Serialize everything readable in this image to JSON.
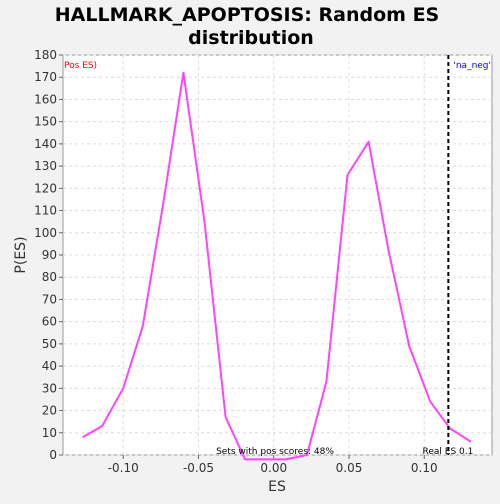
{
  "chart_data": {
    "type": "line",
    "title_lines": [
      "HALLMARK_APOPTOSIS: Random ES",
      "distribution"
    ],
    "xlabel": "ES",
    "ylabel": "P(ES)",
    "xlim": [
      -0.14,
      0.145
    ],
    "ylim": [
      0,
      180
    ],
    "x_ticks": [
      -0.1,
      -0.05,
      0.0,
      0.05,
      0.1
    ],
    "x_tick_labels": [
      "-0.10",
      "-0.05",
      "0.00",
      "0.05",
      "0.10"
    ],
    "y_ticks": [
      0,
      10,
      20,
      30,
      40,
      50,
      60,
      70,
      80,
      90,
      100,
      110,
      120,
      130,
      140,
      150,
      160,
      170,
      180
    ],
    "y_tick_labels": [
      "0",
      "10",
      "20",
      "30",
      "40",
      "50",
      "60",
      "70",
      "80",
      "90",
      "100",
      "110",
      "120",
      "130",
      "140",
      "150",
      "160",
      "170",
      "180"
    ],
    "grid": true,
    "series": [
      {
        "color": "#ff44ff",
        "x": [
          -0.127,
          -0.114,
          -0.1,
          -0.087,
          -0.073,
          -0.06,
          -0.046,
          -0.032,
          -0.019,
          -0.005,
          0.008,
          0.022,
          0.035,
          0.049,
          0.063,
          0.076,
          0.09,
          0.104,
          0.117,
          0.131
        ],
        "y": [
          8,
          13,
          30,
          58,
          115,
          172,
          105,
          17,
          -2,
          -2,
          -2,
          0,
          33,
          126,
          141,
          93,
          49,
          24,
          12,
          6
        ]
      }
    ],
    "real_es": {
      "x": 0.116,
      "color": "#000000",
      "label": "Real ES 0.1"
    },
    "annotations": {
      "pos_es": {
        "text": "Pos ES)",
        "color": "#ff0000"
      },
      "na_neg": {
        "text": "'na_neg'",
        "color": "#0000ff"
      },
      "sets_with_pos": {
        "text": "Sets with pos scores: 48%"
      }
    }
  }
}
